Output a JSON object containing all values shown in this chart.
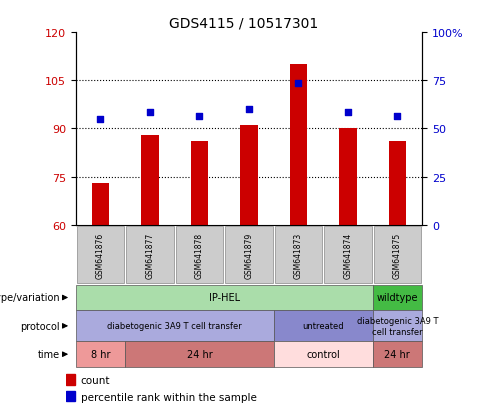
{
  "title": "GDS4115 / 10517301",
  "samples": [
    "GSM641876",
    "GSM641877",
    "GSM641878",
    "GSM641879",
    "GSM641873",
    "GSM641874",
    "GSM641875"
  ],
  "bar_values": [
    73,
    88,
    86,
    91,
    110,
    90,
    86
  ],
  "dot_values_left_scale": [
    93,
    95,
    94,
    96,
    104,
    95,
    94
  ],
  "bar_color": "#cc0000",
  "dot_color": "#0000cc",
  "ylim_left": [
    60,
    120
  ],
  "ylim_right": [
    0,
    100
  ],
  "yticks_left": [
    60,
    75,
    90,
    105,
    120
  ],
  "yticks_right": [
    0,
    25,
    50,
    75,
    100
  ],
  "ytick_labels_right": [
    "0",
    "25",
    "50",
    "75",
    "100%"
  ],
  "genotype_groups": [
    {
      "label": "IP-HEL",
      "start": 0,
      "end": 6,
      "color": "#aaddaa"
    },
    {
      "label": "wildtype",
      "start": 6,
      "end": 7,
      "color": "#44bb44"
    }
  ],
  "protocol_groups": [
    {
      "label": "diabetogenic 3A9 T cell transfer",
      "start": 0,
      "end": 4,
      "color": "#aaaadd"
    },
    {
      "label": "untreated",
      "start": 4,
      "end": 6,
      "color": "#8888cc"
    },
    {
      "label": "diabetogenic 3A9 T\ncell transfer",
      "start": 6,
      "end": 7,
      "color": "#aaaadd"
    }
  ],
  "time_groups": [
    {
      "label": "8 hr",
      "start": 0,
      "end": 1,
      "color": "#ee9999"
    },
    {
      "label": "24 hr",
      "start": 1,
      "end": 4,
      "color": "#cc7777"
    },
    {
      "label": "control",
      "start": 4,
      "end": 6,
      "color": "#ffdddd"
    },
    {
      "label": "24 hr",
      "start": 6,
      "end": 7,
      "color": "#cc7777"
    }
  ],
  "legend_count_color": "#cc0000",
  "legend_dot_color": "#0000cc"
}
